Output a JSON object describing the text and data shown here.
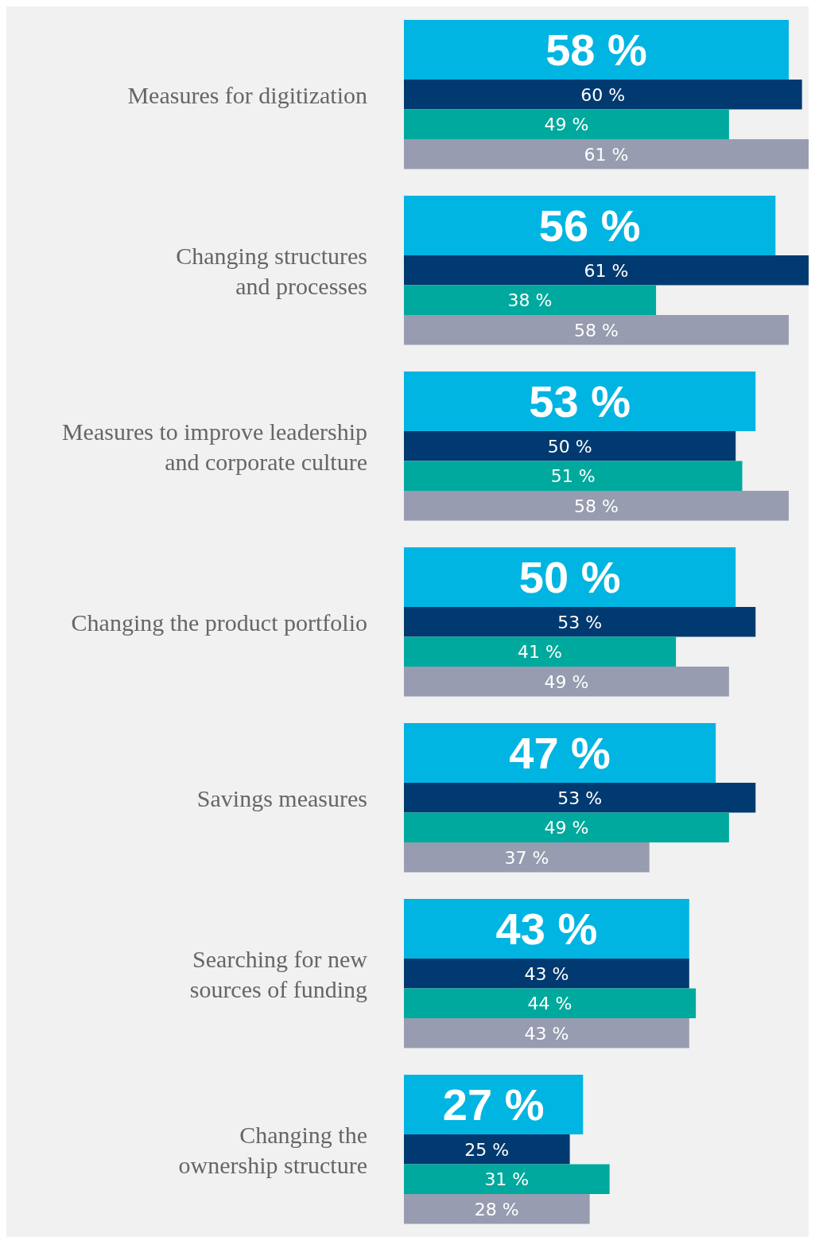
{
  "chart_data": {
    "type": "bar",
    "orientation": "horizontal",
    "categories": [
      "Measures for digitization",
      "Changing structures\nand processes",
      "Measures to improve leadership\nand corporate culture",
      "Changing the product portfolio",
      "Savings measures",
      "Searching for new\nsources of funding",
      "Changing the\nownership structure"
    ],
    "series": [
      {
        "color": "#00b5e2",
        "values": [
          58,
          56,
          53,
          50,
          47,
          43,
          27
        ],
        "value_labels": [
          "58 %",
          "56 %",
          "53 %",
          "50 %",
          "47 %",
          "43 %",
          "27 %"
        ]
      },
      {
        "color": "#003a70",
        "values": [
          60,
          61,
          50,
          53,
          53,
          43,
          25
        ],
        "value_labels": [
          "60 %",
          "61 %",
          "50 %",
          "53 %",
          "53 %",
          "43 %",
          "25 %"
        ]
      },
      {
        "color": "#00a99d",
        "values": [
          49,
          38,
          51,
          41,
          49,
          44,
          31
        ],
        "value_labels": [
          "49 %",
          "38 %",
          "51 %",
          "41 %",
          "49 %",
          "44 %",
          "31 %"
        ]
      },
      {
        "color": "#979cb0",
        "values": [
          61,
          58,
          58,
          49,
          37,
          43,
          28
        ],
        "value_labels": [
          "61 %",
          "58 %",
          "58 %",
          "49 %",
          "37 %",
          "43 %",
          "28 %"
        ]
      }
    ],
    "xlim": [
      0,
      61
    ],
    "tick_labels": "y",
    "grid": false,
    "legend": false
  }
}
